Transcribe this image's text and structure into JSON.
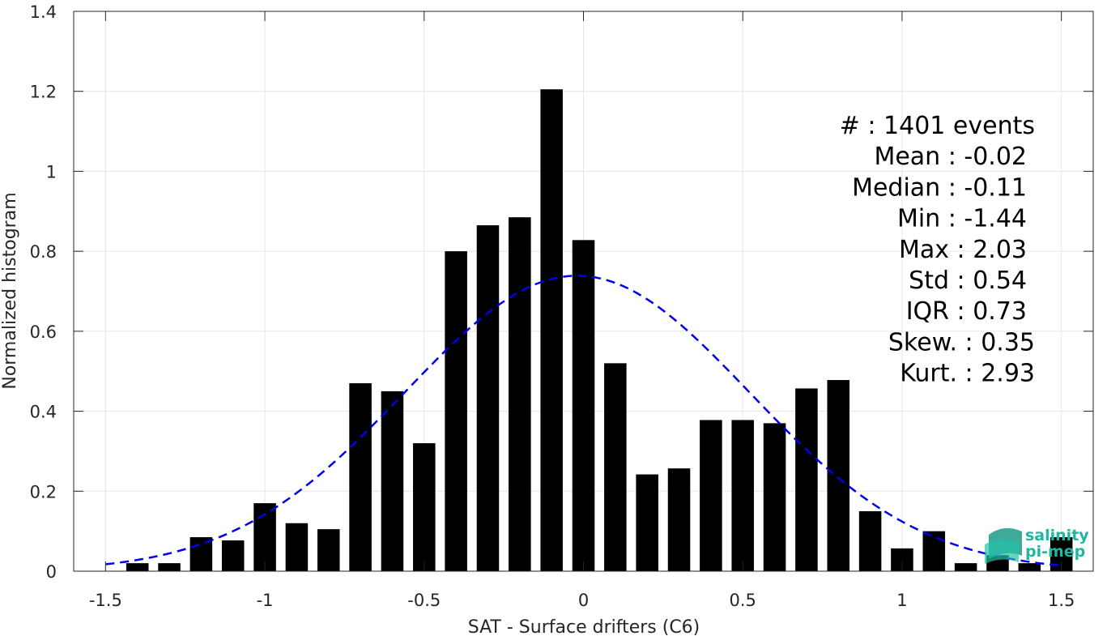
{
  "chart_data": {
    "type": "bar",
    "xlabel": "SAT - Surface drifters (C6)",
    "ylabel": "Normalized histogram",
    "xlim": [
      -1.6,
      1.6
    ],
    "ylim": [
      0,
      1.4
    ],
    "xticks": [
      -1.5,
      -1,
      -0.5,
      0,
      0.5,
      1,
      1.5
    ],
    "xtick_labels": [
      "-1.5",
      "-1",
      "-0.5",
      "0",
      "0.5",
      "1",
      "1.5"
    ],
    "yticks": [
      0,
      0.2,
      0.4,
      0.6,
      0.8,
      1,
      1.2,
      1.4
    ],
    "ytick_labels": [
      "0",
      "0.2",
      "0.4",
      "0.6",
      "0.8",
      "1",
      "1.2",
      "1.4"
    ],
    "grid": true,
    "bar_color": "#000000",
    "bins": {
      "centers": [
        -1.4,
        -1.3,
        -1.2,
        -1.1,
        -1.0,
        -0.9,
        -0.8,
        -0.7,
        -0.6,
        -0.5,
        -0.4,
        -0.3,
        -0.2,
        -0.1,
        0.0,
        0.1,
        0.2,
        0.3,
        0.4,
        0.5,
        0.6,
        0.7,
        0.8,
        0.9,
        1.0,
        1.1,
        1.2,
        1.3,
        1.4,
        1.5
      ],
      "values": [
        0.02,
        0.02,
        0.085,
        0.077,
        0.17,
        0.12,
        0.105,
        0.47,
        0.45,
        0.32,
        0.8,
        0.865,
        0.885,
        1.205,
        0.828,
        0.52,
        0.242,
        0.257,
        0.378,
        0.378,
        0.37,
        0.457,
        0.478,
        0.15,
        0.057,
        0.1,
        0.02,
        0.04,
        0.02,
        0.085
      ]
    },
    "series": [
      {
        "type": "line",
        "style": "dashed",
        "color": "#0000ee",
        "fit": "normal",
        "mean": -0.02,
        "std": 0.54
      }
    ],
    "annotations": {
      "stats": [
        {
          "label": "#  : 1401 events"
        },
        {
          "label": "Mean : -0.02"
        },
        {
          "label": "Median : -0.11"
        },
        {
          "label": "Min : -1.44"
        },
        {
          "label": "Max : 2.03"
        },
        {
          "label": "Std : 0.54"
        },
        {
          "label": "IQR : 0.73"
        },
        {
          "label": "Skew. : 0.35"
        },
        {
          "label": "Kurt. : 2.93"
        }
      ]
    }
  },
  "logo": {
    "line1": "salinity",
    "line2": "pi-mep",
    "color": "#1fb7a0"
  }
}
